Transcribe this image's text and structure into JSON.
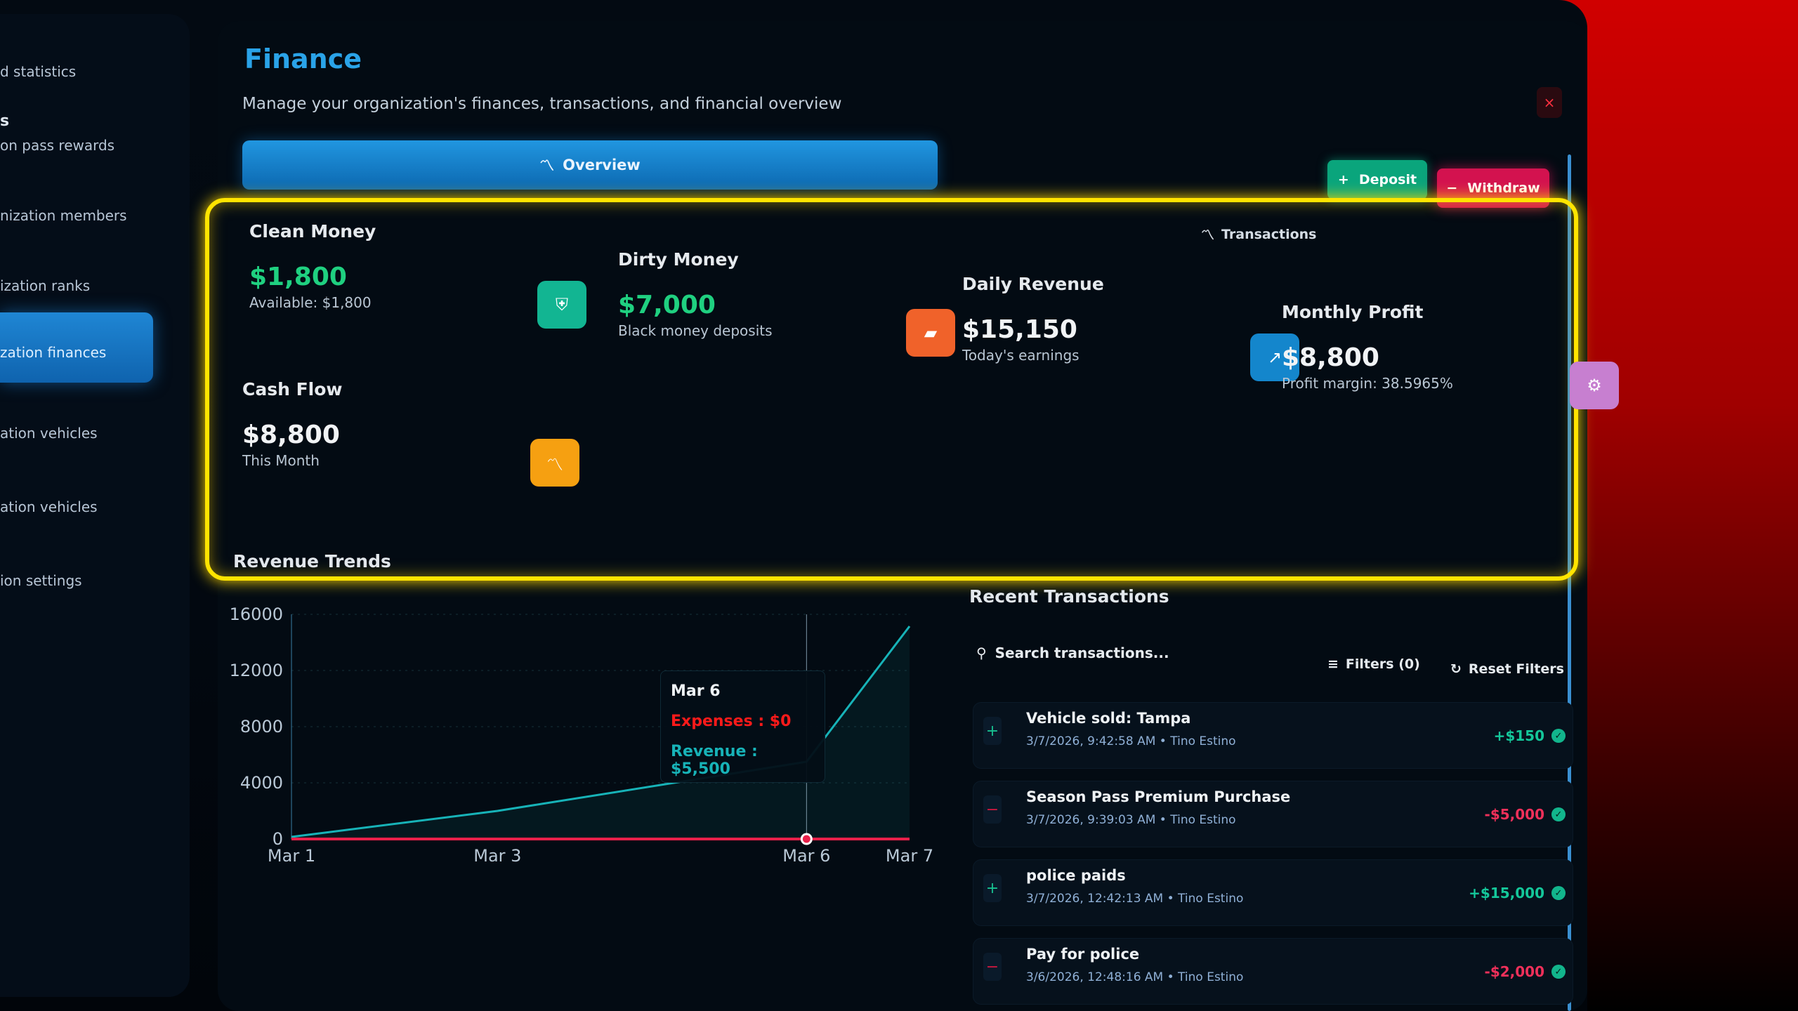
{
  "sidebar": {
    "items": [
      {
        "label": "d statistics",
        "type": "sub"
      },
      {
        "label": "s",
        "type": "head"
      },
      {
        "label": "on pass rewards",
        "type": "sub"
      },
      {
        "label": "nization members",
        "type": "sub"
      },
      {
        "label": "ization ranks",
        "type": "sub"
      },
      {
        "label": "zation finances",
        "type": "active"
      },
      {
        "label": "ation vehicles",
        "type": "sub"
      },
      {
        "label": "ation vehicles",
        "type": "sub"
      },
      {
        "label": "ion settings",
        "type": "sub"
      }
    ]
  },
  "header": {
    "title": "Finance",
    "subtitle": "Manage your organization's finances, transactions, and financial overview",
    "close_label": "×"
  },
  "tabs": [
    {
      "label": "Overview",
      "icon": "trending-icon",
      "active": true
    },
    {
      "label": "Transactions",
      "icon": "trending-icon",
      "active": false
    }
  ],
  "actions": {
    "deposit": "Deposit",
    "withdraw": "Withdraw"
  },
  "cards": [
    {
      "title": "Clean Money",
      "value": "$1,800",
      "sub": "Available: $1,800",
      "icon": "shield-icon",
      "color": "#12b592",
      "value_color": "#1fd080"
    },
    {
      "title": "Dirty Money",
      "value": "$7,000",
      "sub": "Black money deposits",
      "icon": "wallet-icon",
      "color": "#f0622a",
      "value_color": "#1fd080"
    },
    {
      "title": "Daily Revenue",
      "value": "$15,150",
      "sub": "Today's earnings",
      "icon": "trending-up-icon",
      "color": "#1486cc",
      "value_color": "#f1f3f5"
    },
    {
      "title": "Monthly Profit",
      "value": "$8,800",
      "sub": "Profit margin: 38.5965%",
      "icon": "gear-icon",
      "color": "#c77fd0",
      "value_color": "#f1f3f5"
    },
    {
      "title": "Cash Flow",
      "value": "$8,800",
      "sub": "This Month",
      "icon": "trending-icon",
      "color": "#f6a011",
      "value_color": "#f1f3f5"
    }
  ],
  "revenue": {
    "title": "Revenue Trends"
  },
  "chart_data": {
    "type": "line",
    "x": [
      "Mar 1",
      "Mar 3",
      "Mar 6",
      "Mar 7"
    ],
    "ylim": [
      0,
      16000
    ],
    "yticks": [
      "0",
      "4000",
      "8000",
      "12000",
      "16000"
    ],
    "series": [
      {
        "name": "Revenue",
        "values": [
          150,
          2000,
          5500,
          15150
        ],
        "color": "#17b3b8"
      },
      {
        "name": "Expenses",
        "values": [
          0,
          0,
          0,
          0
        ],
        "color": "#e8204a"
      }
    ],
    "tooltip": {
      "label": "Mar 6",
      "expenses": "Expenses : $0",
      "revenue": "Revenue : $5,500"
    },
    "grid": true
  },
  "transactions": {
    "title": "Recent Transactions",
    "search_placeholder": "Search transactions...",
    "filters": "Filters (0)",
    "reset": "Reset Filters",
    "rows": [
      {
        "name": "Vehicle sold: Tampa",
        "meta": "3/7/2026, 9:42:58 AM • Tino Estino",
        "amount": "+$150",
        "sign": "+"
      },
      {
        "name": "Season Pass Premium Purchase",
        "meta": "3/7/2026, 9:39:03 AM • Tino Estino",
        "amount": "-$5,000",
        "sign": "-"
      },
      {
        "name": "police paids",
        "meta": "3/7/2026, 12:42:13 AM • Tino Estino",
        "amount": "+$15,000",
        "sign": "+"
      },
      {
        "name": "Pay for police",
        "meta": "3/6/2026, 12:48:16 AM • Tino Estino",
        "amount": "-$2,000",
        "sign": "-"
      }
    ]
  }
}
